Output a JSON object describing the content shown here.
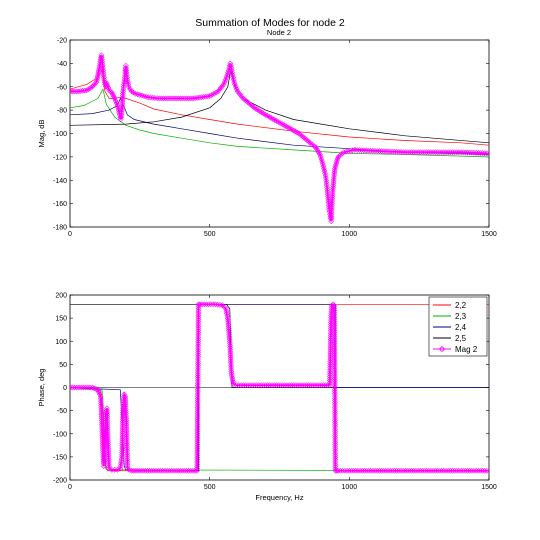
{
  "figure": {
    "title": "Summation of Modes for node 2",
    "subtitle": "Node 2"
  },
  "chart_data": [
    {
      "type": "line",
      "title": "Summation of Modes for node 2",
      "subtitle": "Node 2",
      "xlabel": "",
      "ylabel": "Mag, dB",
      "xlim": [
        0,
        1500
      ],
      "ylim": [
        -180,
        -20
      ],
      "xticks": [
        "0",
        "500",
        "1000",
        "1500"
      ],
      "yticks": [
        "-20",
        "-40",
        "-60",
        "-80",
        "-100",
        "-120",
        "-140",
        "-160",
        "-180"
      ],
      "series": [
        {
          "color": "#ff0000",
          "x": [
            0,
            60,
            100,
            115,
            125,
            140,
            160,
            180,
            200,
            250,
            300,
            400,
            500,
            600,
            800,
            1000,
            1200,
            1400,
            1500
          ],
          "y": [
            -62,
            -58,
            -52,
            -46,
            -64,
            -70,
            -70,
            -69,
            -70,
            -74,
            -79,
            -84,
            -88,
            -92,
            -98,
            -103,
            -106,
            -108,
            -110
          ]
        },
        {
          "color": "#00b000",
          "x": [
            0,
            50,
            100,
            118,
            130,
            160,
            200,
            250,
            300,
            400,
            500,
            600,
            800,
            1000,
            1200,
            1500
          ],
          "y": [
            -78,
            -76,
            -70,
            -62,
            -75,
            -86,
            -93,
            -97,
            -100,
            -104,
            -108,
            -111,
            -114,
            -117,
            -118,
            -120
          ]
        },
        {
          "color": "#000080",
          "x": [
            0,
            80,
            140,
            170,
            180,
            190,
            205,
            230,
            300,
            400,
            500,
            600,
            800,
            1000,
            1200,
            1500
          ],
          "y": [
            -84,
            -83,
            -80,
            -76,
            -70,
            -75,
            -84,
            -88,
            -92,
            -96,
            -100,
            -104,
            -110,
            -113,
            -116,
            -118
          ]
        },
        {
          "color": "#000000",
          "x": [
            0,
            200,
            300,
            400,
            500,
            540,
            565,
            575,
            590,
            620,
            700,
            800,
            1000,
            1200,
            1500
          ],
          "y": [
            -93,
            -92,
            -90,
            -86,
            -78,
            -70,
            -60,
            -46,
            -60,
            -70,
            -80,
            -88,
            -96,
            -102,
            -108
          ]
        },
        {
          "name": "Mag 2",
          "color": "#ff00ff",
          "x": [
            0,
            30,
            60,
            80,
            95,
            105,
            112,
            118,
            122,
            128,
            132,
            140,
            150,
            160,
            170,
            178,
            182,
            186,
            190,
            196,
            200,
            204,
            210,
            220,
            235,
            250,
            280,
            320,
            380,
            440,
            500,
            530,
            550,
            560,
            568,
            574,
            578,
            582,
            590,
            600,
            620,
            660,
            700,
            760,
            820,
            860,
            880,
            895,
            905,
            915,
            922,
            928,
            935,
            940,
            948,
            960,
            980,
            1020,
            1100,
            1200,
            1300,
            1400,
            1500
          ],
          "y": [
            -64,
            -64,
            -63,
            -60,
            -56,
            -44,
            -33,
            -44,
            -54,
            -60,
            -57,
            -63,
            -65,
            -70,
            -76,
            -84,
            -88,
            -80,
            -64,
            -52,
            -42,
            -52,
            -60,
            -64,
            -66,
            -67,
            -69,
            -70,
            -70,
            -70,
            -68,
            -64,
            -58,
            -52,
            -46,
            -40,
            -44,
            -50,
            -58,
            -64,
            -70,
            -78,
            -84,
            -92,
            -100,
            -108,
            -112,
            -118,
            -126,
            -136,
            -150,
            -165,
            -175,
            -150,
            -130,
            -120,
            -116,
            -114,
            -115,
            -116,
            -116,
            -116,
            -117
          ]
        }
      ]
    },
    {
      "type": "line",
      "title": "",
      "xlabel": "Frequency, Hz",
      "ylabel": "Phase, deg",
      "xlim": [
        0,
        1500
      ],
      "ylim": [
        -200,
        200
      ],
      "xticks": [
        "0",
        "500",
        "1000",
        "1500"
      ],
      "yticks": [
        "200",
        "150",
        "100",
        "50",
        "0",
        "-50",
        "-100",
        "-150",
        "-200"
      ],
      "legend_position": "top-right",
      "series": [
        {
          "name": "2,2",
          "color": "#ff0000",
          "x": [
            0,
            110,
            118,
            122,
            128,
            135,
            460,
            460,
            1500
          ],
          "y": [
            0,
            -5,
            -60,
            -130,
            -175,
            -180,
            -180,
            180,
            180
          ]
        },
        {
          "name": "2,3",
          "color": "#00b000",
          "x": [
            0,
            115,
            122,
            128,
            135,
            1500
          ],
          "y": [
            0,
            -5,
            -90,
            -170,
            -178,
            -180
          ]
        },
        {
          "name": "2,4",
          "color": "#000080",
          "x": [
            0,
            180,
            188,
            194,
            200,
            460,
            460,
            950,
            950,
            1500
          ],
          "y": [
            0,
            -5,
            -90,
            -170,
            -178,
            -180,
            180,
            180,
            0,
            0
          ]
        },
        {
          "name": "2,5",
          "color": "#000000",
          "x": [
            0,
            560,
            572,
            580,
            592,
            950,
            950,
            1500
          ],
          "y": [
            180,
            180,
            170,
            0,
            0,
            0,
            -180,
            -180
          ]
        },
        {
          "name": "Mag 2",
          "color": "#ff00ff",
          "x": [
            0,
            80,
            100,
            110,
            115,
            118,
            121,
            124,
            128,
            132,
            135,
            140,
            150,
            160,
            170,
            180,
            186,
            190,
            194,
            198,
            202,
            206,
            212,
            220,
            240,
            300,
            380,
            455,
            460,
            465,
            480,
            520,
            545,
            558,
            565,
            572,
            578,
            585,
            595,
            620,
            700,
            800,
            900,
            930,
            935,
            938,
            942,
            946,
            950,
            955,
            960,
            1000,
            1100,
            1200,
            1300,
            1400,
            1500
          ],
          "y": [
            0,
            0,
            -5,
            -20,
            -90,
            -140,
            -170,
            -150,
            -60,
            -45,
            -100,
            -175,
            -178,
            -178,
            -178,
            -175,
            -150,
            -40,
            -15,
            -20,
            -80,
            -175,
            -178,
            -180,
            -180,
            -180,
            -180,
            -180,
            180,
            180,
            180,
            180,
            178,
            170,
            150,
            100,
            30,
            8,
            5,
            5,
            5,
            5,
            5,
            5,
            160,
            178,
            180,
            176,
            -180,
            -180,
            -180,
            -180,
            -180,
            -180,
            -180,
            -180,
            -180
          ]
        }
      ]
    }
  ]
}
